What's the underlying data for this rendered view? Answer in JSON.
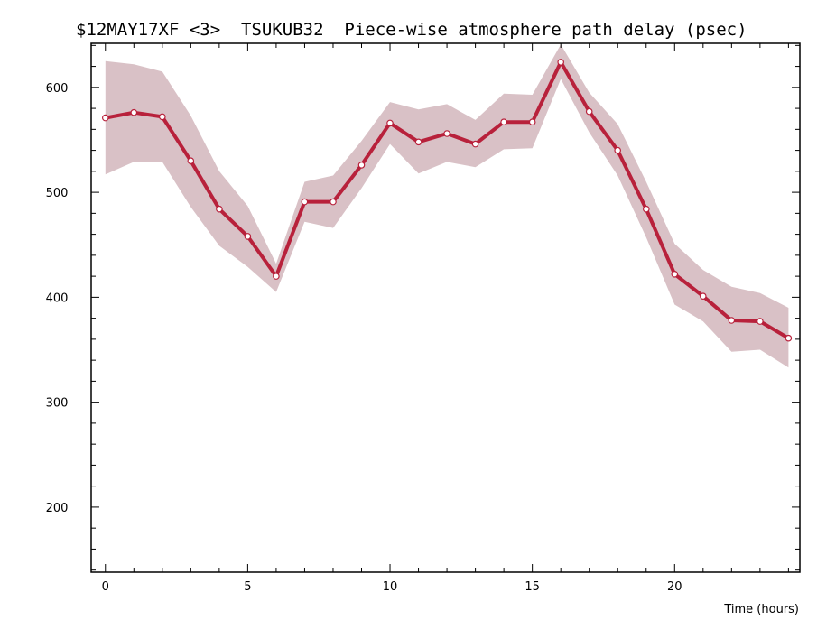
{
  "chart_data": {
    "type": "line",
    "title": "$12MAY17XF <3>  TSUKUB32  Piece-wise atmosphere path delay (psec)",
    "xlabel": "Time (hours)",
    "ylabel": "",
    "xlim": [
      -0.5,
      24.4
    ],
    "ylim": [
      138,
      642
    ],
    "xticks": [
      0,
      5,
      10,
      15,
      20
    ],
    "yticks": [
      200,
      300,
      400,
      500,
      600
    ],
    "grid": false,
    "series": [
      {
        "x": [
          0,
          1,
          2,
          3,
          4,
          5,
          6,
          7,
          8,
          9,
          10,
          11,
          12,
          13,
          14,
          15,
          16,
          17,
          18,
          19,
          20,
          21,
          22,
          23,
          24
        ],
        "values": [
          571,
          576,
          572,
          530,
          484,
          458,
          420,
          491,
          491,
          526,
          566,
          548,
          556,
          546,
          567,
          567,
          624,
          577,
          540,
          484,
          422,
          401,
          378,
          377,
          361
        ],
        "upper": [
          625,
          622,
          615,
          573,
          520,
          487,
          432,
          510,
          516,
          549,
          586,
          579,
          584,
          569,
          594,
          593,
          641,
          595,
          565,
          510,
          451,
          426,
          410,
          404,
          390
        ],
        "lower": [
          517,
          529,
          529,
          486,
          449,
          429,
          405,
          472,
          466,
          504,
          546,
          518,
          529,
          524,
          541,
          542,
          608,
          557,
          516,
          457,
          393,
          377,
          348,
          350,
          333
        ],
        "line_color": "#b8213b",
        "band_color": "#d9c1c6"
      }
    ]
  }
}
